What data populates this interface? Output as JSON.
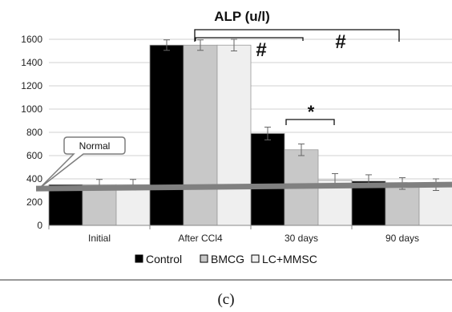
{
  "chart_data": {
    "type": "bar",
    "title": "ALP (u/l)",
    "categories": [
      "Initial",
      "After CCl4",
      "30 days",
      "90 days"
    ],
    "series": [
      {
        "name": "Control",
        "color": "#000000",
        "values": [
          350,
          1550,
          790,
          380
        ],
        "errors": [
          0,
          45,
          55,
          55
        ]
      },
      {
        "name": "BMCG",
        "color": "#c8c8c8",
        "values": [
          350,
          1550,
          650,
          360
        ],
        "errors": [
          45,
          45,
          50,
          50
        ]
      },
      {
        "name": "LC+MMSC",
        "color": "#efefef",
        "values": [
          350,
          1550,
          390,
          350
        ],
        "errors": [
          45,
          50,
          55,
          50
        ]
      }
    ],
    "ylim": [
      0,
      1600
    ],
    "yticks": [
      0,
      200,
      400,
      600,
      800,
      1000,
      1200,
      1400,
      1600
    ],
    "grid": true,
    "legend": "bottom",
    "normal_line": {
      "label": "Normal",
      "value": 330,
      "color": "#808080"
    },
    "annotations": {
      "hash_1": "#",
      "hash_2": "#",
      "star": "*"
    }
  },
  "caption": "(c)"
}
